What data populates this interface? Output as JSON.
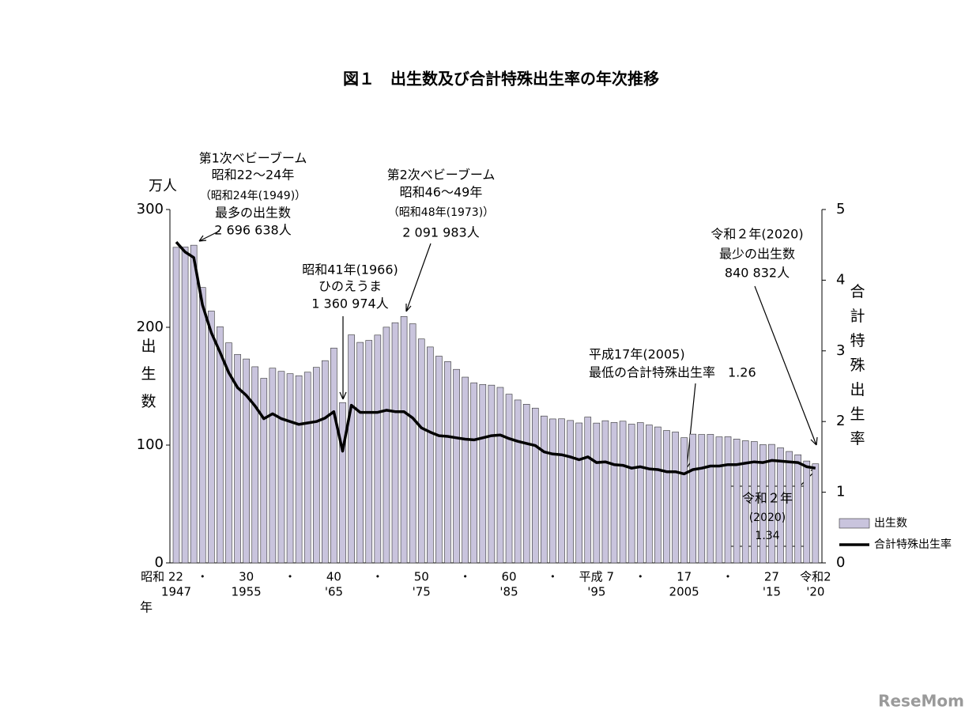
{
  "chart_data": {
    "type": "bar",
    "title": "図１　出生数及び合計特殊出生率の年次推移",
    "y_unit": "万人",
    "y_title": "出生数",
    "y2_title": "合計特殊出生率",
    "x_unit": "年",
    "categories": [
      "昭和 22",
      null,
      null,
      "・",
      null,
      null,
      null,
      null,
      "30",
      null,
      null,
      null,
      null,
      "・",
      null,
      null,
      null,
      null,
      "40",
      null,
      null,
      null,
      null,
      "・",
      null,
      null,
      null,
      null,
      "50",
      null,
      null,
      null,
      null,
      "・",
      null,
      null,
      null,
      null,
      "60",
      null,
      null,
      null,
      null,
      "・",
      null,
      null,
      null,
      null,
      "平成 7",
      null,
      null,
      null,
      null,
      "・",
      null,
      null,
      null,
      null,
      "17",
      null,
      null,
      null,
      null,
      "・",
      null,
      null,
      null,
      null,
      "27",
      null,
      null,
      null,
      null,
      "令和2"
    ],
    "categories_line2": [
      "1947",
      null,
      null,
      null,
      null,
      null,
      null,
      null,
      "1955",
      null,
      null,
      null,
      null,
      null,
      null,
      null,
      null,
      null,
      "'65",
      null,
      null,
      null,
      null,
      null,
      null,
      null,
      null,
      null,
      "'75",
      null,
      null,
      null,
      null,
      null,
      null,
      null,
      null,
      null,
      "'85",
      null,
      null,
      null,
      null,
      null,
      null,
      null,
      null,
      null,
      "'95",
      null,
      null,
      null,
      null,
      null,
      null,
      null,
      null,
      null,
      "2005",
      null,
      null,
      null,
      null,
      null,
      null,
      null,
      null,
      null,
      "'15",
      null,
      null,
      null,
      null,
      "'20"
    ],
    "series": [
      {
        "name": "出生数",
        "type": "bar",
        "color": "#c9c4dd",
        "values": [
          267.9,
          268.2,
          269.7,
          233.8,
          213.8,
          200.5,
          186.8,
          177.0,
          173.1,
          166.5,
          156.7,
          165.3,
          162.6,
          160.6,
          158.9,
          161.9,
          166.0,
          171.7,
          182.4,
          136.1,
          193.6,
          187.2,
          188.9,
          193.4,
          200.1,
          203.9,
          209.2,
          203.0,
          190.1,
          183.3,
          175.5,
          170.9,
          164.3,
          157.7,
          152.9,
          151.5,
          150.9,
          149.0,
          143.2,
          138.3,
          134.7,
          131.4,
          124.7,
          122.2,
          122.3,
          120.9,
          118.8,
          123.8,
          118.7,
          120.7,
          119.2,
          120.3,
          117.8,
          119.1,
          117.1,
          115.4,
          112.4,
          111.1,
          106.3,
          109.3,
          109.0,
          109.1,
          107.0,
          107.1,
          105.1,
          103.7,
          103.0,
          100.4,
          100.6,
          97.7,
          94.6,
          91.8,
          86.5,
          84.1
        ]
      },
      {
        "name": "合計特殊出生率",
        "type": "line",
        "axis": "y2",
        "color": "#000000",
        "values": [
          4.54,
          4.4,
          4.32,
          3.65,
          3.26,
          2.98,
          2.69,
          2.48,
          2.37,
          2.22,
          2.04,
          2.11,
          2.04,
          2.0,
          1.96,
          1.98,
          2.0,
          2.05,
          2.14,
          1.58,
          2.23,
          2.13,
          2.13,
          2.13,
          2.16,
          2.14,
          2.14,
          2.05,
          1.91,
          1.85,
          1.8,
          1.79,
          1.77,
          1.75,
          1.74,
          1.77,
          1.8,
          1.81,
          1.76,
          1.72,
          1.69,
          1.66,
          1.57,
          1.54,
          1.53,
          1.5,
          1.46,
          1.5,
          1.42,
          1.43,
          1.39,
          1.38,
          1.34,
          1.36,
          1.33,
          1.32,
          1.29,
          1.29,
          1.26,
          1.32,
          1.34,
          1.37,
          1.37,
          1.39,
          1.39,
          1.41,
          1.43,
          1.42,
          1.45,
          1.44,
          1.43,
          1.42,
          1.36,
          1.34
        ]
      }
    ],
    "ylim": [
      0,
      300
    ],
    "yticks": [
      0,
      100,
      200,
      300
    ],
    "y2lim": [
      0,
      5
    ],
    "y2ticks": [
      0,
      1,
      2,
      3,
      4,
      5
    ],
    "annotations": [
      {
        "lines": [
          "第1次ベビーブーム",
          "昭和22～24年",
          "（昭和24年(1949)）",
          "最多の出生数",
          "2 696 638人"
        ]
      },
      {
        "lines": [
          "第2次ベビーブーム",
          "昭和46～49年",
          "（昭和48年(1973)）",
          "2 091 983人"
        ]
      },
      {
        "lines": [
          "昭和41年(1966)",
          "ひのえうま",
          "1 360 974人"
        ]
      },
      {
        "lines": [
          "平成17年(2005)",
          "最低の合計特殊出生率　1.26"
        ]
      },
      {
        "lines": [
          "令和２年(2020)",
          "最少の出生数",
          "840 832人"
        ]
      },
      {
        "lines": [
          "令和２年",
          "(2020)",
          "1.34"
        ]
      }
    ],
    "watermark": "ReseMom"
  }
}
